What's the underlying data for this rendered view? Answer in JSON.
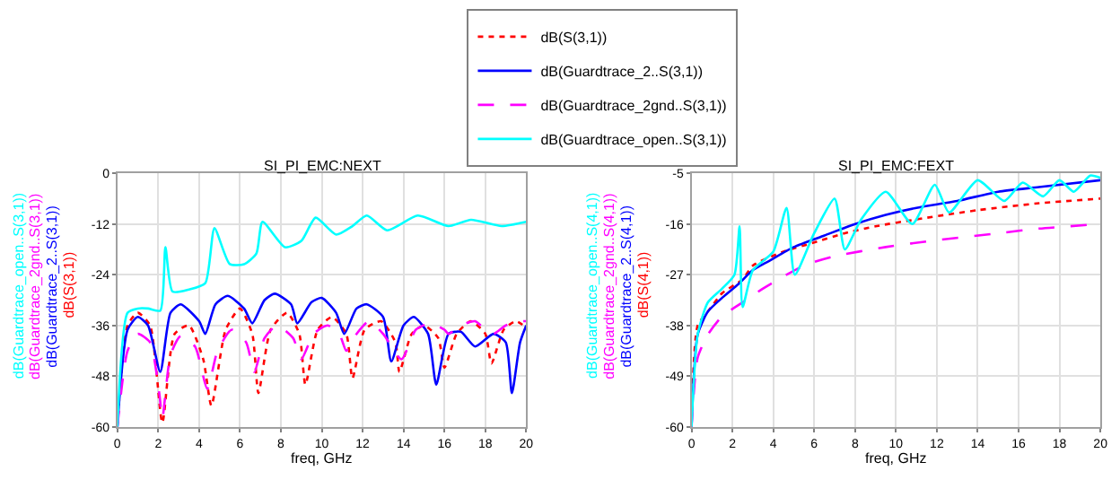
{
  "chart_data": [
    {
      "type": "line",
      "title": "SI_PI_EMC:NEXT",
      "xlabel": "freq, GHz",
      "xlim": [
        0,
        20
      ],
      "xticks": [
        0,
        2,
        4,
        6,
        8,
        10,
        12,
        14,
        16,
        18,
        20
      ],
      "ylim": [
        -60,
        0
      ],
      "yticks": [
        -60,
        -48,
        -36,
        -24,
        -12,
        0
      ],
      "grid": true,
      "legend": "top",
      "series": [
        {
          "name": "dB(S(3,1))",
          "color": "#ff0000",
          "line_style": "dotted",
          "x": [
            0,
            0.5,
            1.0,
            1.6,
            2.2,
            2.8,
            3.5,
            4.2,
            4.6,
            5.3,
            6.0,
            6.6,
            6.9,
            7.5,
            8.3,
            8.9,
            9.2,
            9.8,
            10.5,
            11.2,
            11.5,
            12.1,
            12.9,
            13.6,
            13.8,
            14.4,
            15.0,
            15.7,
            16.0,
            16.6,
            17.3,
            18.0,
            18.3,
            18.9,
            19.5,
            20
          ],
          "values": [
            -60,
            -36,
            -33,
            -36,
            -59,
            -38,
            -36,
            -44,
            -55,
            -37,
            -32,
            -38,
            -52,
            -37,
            -33,
            -38,
            -50,
            -37,
            -34,
            -38,
            -48.5,
            -37,
            -35,
            -40,
            -47,
            -38,
            -36,
            -39,
            -46,
            -38,
            -35,
            -38,
            -45,
            -37,
            -35,
            -36.5
          ]
        },
        {
          "name": "dB(Guardtrace_2..S(3,1))",
          "color": "#0000ff",
          "line_style": "solid",
          "x": [
            0,
            0.5,
            1.0,
            1.5,
            2.1,
            2.6,
            3.1,
            4.0,
            4.3,
            4.8,
            5.4,
            6.2,
            6.6,
            7.2,
            7.7,
            8.5,
            8.8,
            9.5,
            10.0,
            10.7,
            11.1,
            11.7,
            12.2,
            13.0,
            13.4,
            14.0,
            14.5,
            15.2,
            15.6,
            16.2,
            16.8,
            17.5,
            18.4,
            19.0,
            19.3,
            19.7,
            20
          ],
          "values": [
            -60,
            -37,
            -34,
            -36,
            -47,
            -33,
            -31,
            -35,
            -38,
            -31,
            -29,
            -32,
            -35.5,
            -30,
            -28.5,
            -31,
            -35.5,
            -30.5,
            -29.5,
            -33,
            -38,
            -32,
            -31,
            -34,
            -44.5,
            -36,
            -34,
            -38,
            -50,
            -38,
            -37.5,
            -41,
            -38,
            -40,
            -52,
            -40,
            -36
          ]
        },
        {
          "name": "dB(Guardtrace_2gnd..S(3,1))",
          "color": "#ff00ff",
          "line_style": "dashed",
          "x": [
            0,
            0.5,
            1.0,
            1.6,
            2.05,
            2.2,
            2.6,
            3.1,
            3.8,
            4.4,
            4.9,
            5.6,
            6.3,
            6.7,
            7.2,
            7.8,
            8.6,
            9.0,
            9.6,
            10.3,
            10.9,
            11.2,
            11.7,
            12.3,
            13.0,
            13.9,
            14.6,
            15.3,
            16.0,
            16.2,
            16.8,
            17.5,
            18.0,
            18.4,
            19.0,
            19.8,
            20
          ],
          "values": [
            -60,
            -42,
            -38,
            -40,
            -52,
            -58,
            -43,
            -38.5,
            -41,
            -51,
            -42,
            -37,
            -40,
            -47,
            -39,
            -36,
            -39,
            -44,
            -38,
            -36,
            -38.5,
            -42,
            -38,
            -35,
            -38,
            -44,
            -37,
            -35.5,
            -37,
            -38,
            -36,
            -35,
            -37,
            -38,
            -36,
            -35,
            -35
          ]
        },
        {
          "name": "dB(Guardtrace_open..S(3,1))",
          "color": "#00ffff",
          "line_style": "solid",
          "x": [
            0,
            0.5,
            1.0,
            1.5,
            2.1,
            2.35,
            2.7,
            3.5,
            4.3,
            4.75,
            5.5,
            6.2,
            6.8,
            7.1,
            8.2,
            9.0,
            9.7,
            10.7,
            11.5,
            12.2,
            13.2,
            14.7,
            16.2,
            17.3,
            18.8,
            20
          ],
          "values": [
            -60,
            -33,
            -32,
            -32,
            -32.5,
            -17.5,
            -28,
            -27.5,
            -26,
            -13,
            -21.5,
            -21.5,
            -19,
            -11.5,
            -17.5,
            -16,
            -10.5,
            -14.5,
            -12.5,
            -10,
            -13.5,
            -10,
            -12.5,
            -11,
            -12.5,
            -11.5
          ]
        }
      ]
    },
    {
      "type": "line",
      "title": "SI_PI_EMC:FEXT",
      "xlabel": "freq, GHz",
      "xlim": [
        0,
        20
      ],
      "xticks": [
        0,
        2,
        4,
        6,
        8,
        10,
        12,
        14,
        16,
        18,
        20
      ],
      "ylim": [
        -60,
        -5
      ],
      "yticks": [
        -60,
        -49,
        -38,
        -27,
        -16,
        -5
      ],
      "grid": true,
      "series": [
        {
          "name": "dB(S(4,1))",
          "color": "#ff0000",
          "line_style": "dotted",
          "x": [
            0,
            0.3,
            0.8,
            1.5,
            2.5,
            3.0,
            4.5,
            6.0,
            7.5,
            9.0,
            11.0,
            14.0,
            17.0,
            20
          ],
          "values": [
            -60,
            -38,
            -35,
            -31,
            -28,
            -25,
            -22,
            -20,
            -18,
            -16.5,
            -15,
            -13,
            -11.5,
            -10.5
          ]
        },
        {
          "name": "dB(Guardtrace_2..S(4,1))",
          "color": "#0000ff",
          "line_style": "solid",
          "x": [
            0,
            0.3,
            0.8,
            1.5,
            2.3,
            3.0,
            3.8,
            5.0,
            6.5,
            8.0,
            9.5,
            11.0,
            13.0,
            15.0,
            17.0,
            20
          ],
          "values": [
            -60,
            -40,
            -35,
            -32,
            -29,
            -26,
            -24,
            -21,
            -18.5,
            -16,
            -14,
            -12.5,
            -11,
            -9,
            -8,
            -6.5
          ]
        },
        {
          "name": "dB(Guardtrace_2gnd..S(4,1))",
          "color": "#ff00ff",
          "line_style": "dashed",
          "x": [
            0,
            0.3,
            0.8,
            1.5,
            2.5,
            3.5,
            5.5,
            7.0,
            9.5,
            12.0,
            15.0,
            17.0,
            20
          ],
          "values": [
            -60,
            -45,
            -40,
            -36,
            -33,
            -30,
            -25,
            -23,
            -21,
            -19.5,
            -18,
            -17,
            -16
          ]
        },
        {
          "name": "dB(Guardtrace_open..S(4,1))",
          "color": "#00ffff",
          "line_style": "solid",
          "x": [
            0,
            0.3,
            0.8,
            1.5,
            2.1,
            2.35,
            2.5,
            3.0,
            4.0,
            4.65,
            5.05,
            6.0,
            7.0,
            7.5,
            8.3,
            9.5,
            10.8,
            11.9,
            12.6,
            14.0,
            15.3,
            16.2,
            17.2,
            18.0,
            18.7,
            19.5,
            20
          ],
          "values": [
            -60,
            -40,
            -33,
            -30,
            -27,
            -16.5,
            -34,
            -26,
            -22,
            -12.5,
            -27,
            -18,
            -10.5,
            -21.5,
            -15,
            -9,
            -16,
            -7.5,
            -13.5,
            -6.5,
            -11,
            -7,
            -10,
            -6.5,
            -9,
            -5.5,
            -6
          ]
        }
      ]
    }
  ]
}
